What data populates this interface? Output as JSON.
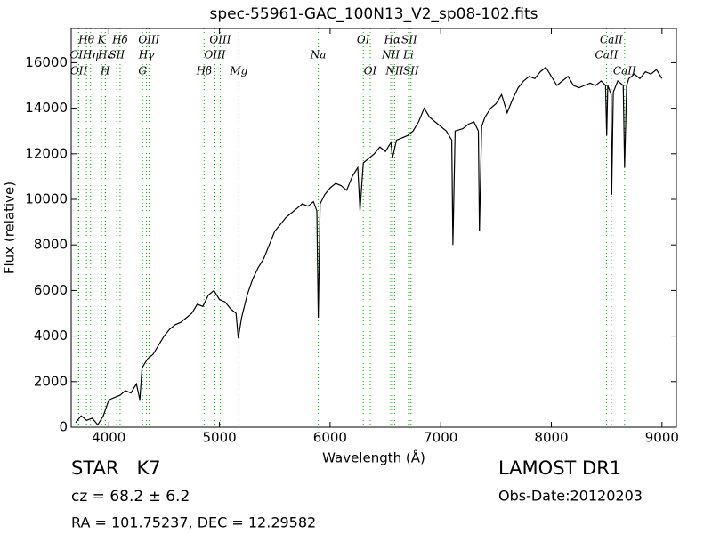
{
  "chart_data": {
    "type": "line",
    "title": "spec-55961-GAC_100N13_V2_sp08-102.fits",
    "x_label": "Wavelength (Å)",
    "y_label": "Flux (relative)",
    "xlim": [
      3660,
      9130
    ],
    "ylim": [
      0,
      17500
    ],
    "xticks": [
      4000,
      5000,
      6000,
      7000,
      8000,
      9000
    ],
    "yticks": [
      0,
      2000,
      4000,
      6000,
      8000,
      10000,
      12000,
      14000,
      16000
    ],
    "color": "#000000",
    "line_color": "#00aa00",
    "x": [
      3700,
      3750,
      3800,
      3850,
      3900,
      3950,
      4000,
      4050,
      4100,
      4150,
      4200,
      4250,
      4280,
      4300,
      4350,
      4400,
      4450,
      4500,
      4550,
      4600,
      4650,
      4700,
      4750,
      4800,
      4850,
      4900,
      4950,
      5000,
      5050,
      5100,
      5150,
      5170,
      5200,
      5250,
      5300,
      5350,
      5400,
      5450,
      5500,
      5550,
      5600,
      5650,
      5700,
      5750,
      5800,
      5850,
      5880,
      5893,
      5910,
      5950,
      6000,
      6050,
      6100,
      6150,
      6200,
      6250,
      6270,
      6300,
      6350,
      6400,
      6450,
      6500,
      6550,
      6563,
      6600,
      6650,
      6700,
      6750,
      6800,
      6850,
      6900,
      6950,
      7000,
      7050,
      7100,
      7110,
      7130,
      7200,
      7250,
      7300,
      7340,
      7350,
      7370,
      7400,
      7450,
      7500,
      7550,
      7600,
      7650,
      7700,
      7750,
      7800,
      7850,
      7900,
      7950,
      8000,
      8050,
      8100,
      8150,
      8200,
      8250,
      8300,
      8350,
      8400,
      8450,
      8490,
      8500,
      8510,
      8540,
      8545,
      8560,
      8600,
      8650,
      8662,
      8680,
      8700,
      8750,
      8800,
      8850,
      8900,
      8950,
      9000
    ],
    "values": [
      200,
      500,
      300,
      400,
      100,
      500,
      1200,
      1300,
      1400,
      1600,
      1500,
      1900,
      1200,
      2600,
      3000,
      3200,
      3600,
      4000,
      4300,
      4500,
      4600,
      4800,
      5000,
      5400,
      5300,
      5800,
      6000,
      5600,
      5500,
      5200,
      5000,
      3900,
      4800,
      5800,
      6500,
      7000,
      7400,
      8000,
      8600,
      8900,
      9200,
      9400,
      9600,
      9800,
      9700,
      9900,
      9500,
      4800,
      9800,
      10200,
      10500,
      10700,
      10600,
      10400,
      11000,
      11400,
      9500,
      11600,
      11800,
      12000,
      12300,
      12100,
      12500,
      11800,
      12600,
      12700,
      12800,
      13000,
      13400,
      14000,
      13600,
      13400,
      13200,
      13000,
      12600,
      8000,
      13000,
      13100,
      13300,
      13400,
      13000,
      8600,
      13200,
      13600,
      14000,
      14200,
      14600,
      13800,
      14400,
      14900,
      15200,
      15400,
      15300,
      15600,
      15800,
      15400,
      15000,
      15200,
      15400,
      15000,
      14900,
      15000,
      15100,
      15000,
      15200,
      15000,
      12800,
      15000,
      14600,
      10200,
      14700,
      15200,
      15000,
      11400,
      15000,
      15300,
      15500,
      15300,
      15600,
      15500,
      15700,
      15300
    ],
    "lines": [
      {
        "name": "OII",
        "wavelength": 3726
      },
      {
        "name": "OII",
        "wavelength": 3729
      },
      {
        "name": "Hθ",
        "wavelength": 3798
      },
      {
        "name": "Hη",
        "wavelength": 3835
      },
      {
        "name": "K",
        "wavelength": 3934
      },
      {
        "name": "Hε",
        "wavelength": 3970
      },
      {
        "name": "H",
        "wavelength": 3968
      },
      {
        "name": "SII",
        "wavelength": 4072
      },
      {
        "name": "Hδ",
        "wavelength": 4102
      },
      {
        "name": "G",
        "wavelength": 4305
      },
      {
        "name": "Hγ",
        "wavelength": 4340
      },
      {
        "name": "OIII",
        "wavelength": 4363
      },
      {
        "name": "Hβ",
        "wavelength": 4861
      },
      {
        "name": "OIII",
        "wavelength": 4959
      },
      {
        "name": "OIII",
        "wavelength": 5007
      },
      {
        "name": "Mg",
        "wavelength": 5175
      },
      {
        "name": "Na",
        "wavelength": 5893
      },
      {
        "name": "OI",
        "wavelength": 6300
      },
      {
        "name": "OI",
        "wavelength": 6363
      },
      {
        "name": "NII",
        "wavelength": 6548
      },
      {
        "name": "Hα",
        "wavelength": 6563
      },
      {
        "name": "NII",
        "wavelength": 6583
      },
      {
        "name": "Li",
        "wavelength": 6708
      },
      {
        "name": "SII",
        "wavelength": 6716
      },
      {
        "name": "SII",
        "wavelength": 6731
      },
      {
        "name": "CaII",
        "wavelength": 8498
      },
      {
        "name": "CaII",
        "wavelength": 8542
      },
      {
        "name": "CaII",
        "wavelength": 8662
      }
    ]
  },
  "info": {
    "object": "STAR   K7",
    "cz": "cz = 68.2 ± 6.2",
    "coords": "RA = 101.75237, DEC = 12.29582",
    "survey": "LAMOST DR1",
    "date": "Obs-Date:20120203"
  }
}
